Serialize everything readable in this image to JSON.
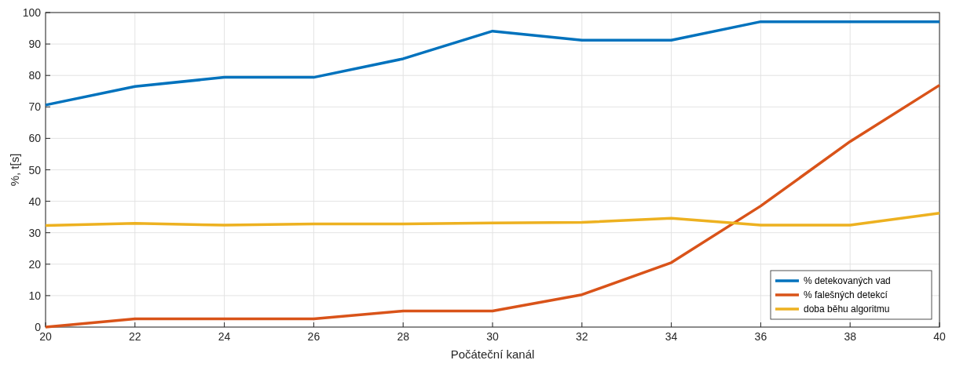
{
  "chart_data": {
    "type": "line",
    "xlabel": "Počáteční kanál",
    "ylabel": "%, t[s]",
    "x": [
      20,
      22,
      24,
      26,
      28,
      30,
      32,
      34,
      36,
      38,
      40
    ],
    "series": [
      {
        "name": "% detekovaných vad",
        "color": "#0072bd",
        "values": [
          70.6,
          76.5,
          79.4,
          79.4,
          85.3,
          94.1,
          91.2,
          91.2,
          97.1,
          97.1,
          97.1
        ]
      },
      {
        "name": "% falešných detekcí",
        "color": "#d95319",
        "values": [
          0,
          2.6,
          2.6,
          2.6,
          5.1,
          5.1,
          10.3,
          20.5,
          38.5,
          59,
          76.9
        ]
      },
      {
        "name": "doba běhu algoritmu",
        "color": "#edb120",
        "values": [
          32.3,
          33,
          32.4,
          32.8,
          32.8,
          33.1,
          33.3,
          34.6,
          32.4,
          32.4,
          36.2
        ]
      }
    ],
    "xlim": [
      20,
      40
    ],
    "xticks": [
      20,
      22,
      24,
      26,
      28,
      30,
      32,
      34,
      36,
      38,
      40
    ],
    "ylim": [
      0,
      100
    ],
    "yticks": [
      0,
      10,
      20,
      30,
      40,
      50,
      60,
      70,
      80,
      90,
      100
    ],
    "grid": true,
    "legend": "bottom right",
    "marker": "none",
    "line_style": "solid"
  }
}
